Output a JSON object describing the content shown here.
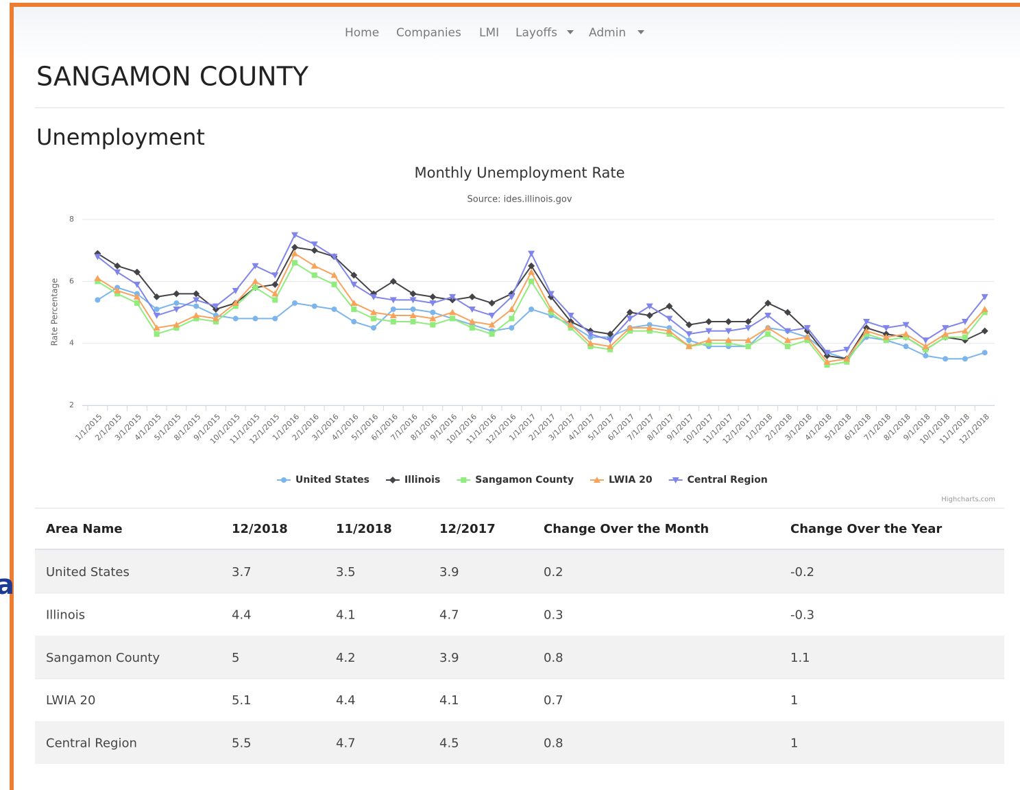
{
  "nav": [
    "Home",
    "Companies",
    "LMI",
    "Layoffs",
    "Admin"
  ],
  "side_text": "a",
  "page_title": "SANGAMON COUNTY",
  "section_title": "Unemployment",
  "chart_data": {
    "type": "line",
    "title": "Monthly Unemployment Rate",
    "subtitle": "Source: ides.illinois.gov",
    "y_label": "Rate Percentage",
    "credits": "Highcharts.com",
    "categories": [
      "1/1/2015",
      "2/1/2015",
      "3/1/2015",
      "4/1/2015",
      "5/1/2015",
      "8/1/2015",
      "9/1/2015",
      "10/1/2015",
      "11/1/2015",
      "12/1/2015",
      "1/1/2016",
      "2/1/2016",
      "3/1/2016",
      "4/1/2016",
      "5/1/2016",
      "6/1/2016",
      "7/1/2016",
      "8/1/2016",
      "9/1/2016",
      "10/1/2016",
      "11/1/2016",
      "12/1/2016",
      "1/1/2017",
      "2/1/2017",
      "3/1/2017",
      "4/1/2017",
      "5/1/2017",
      "6/1/2017",
      "7/1/2017",
      "8/1/2017",
      "9/1/2017",
      "10/1/2017",
      "11/1/2017",
      "12/1/2017",
      "1/1/2018",
      "2/1/2018",
      "3/1/2018",
      "4/1/2018",
      "5/1/2018",
      "6/1/2018",
      "7/1/2018",
      "8/1/2018",
      "9/1/2018",
      "10/1/2018",
      "11/1/2018",
      "12/1/2018"
    ],
    "series": [
      {
        "name": "United States",
        "color": "#7cb5ec",
        "marker": "circle",
        "values": [
          5.4,
          5.8,
          5.6,
          5.1,
          5.3,
          5.2,
          4.9,
          4.8,
          4.8,
          4.8,
          5.3,
          5.2,
          5.1,
          4.7,
          4.5,
          5.1,
          5.1,
          5.0,
          4.8,
          4.6,
          4.4,
          4.5,
          5.1,
          4.9,
          4.6,
          4.2,
          4.2,
          4.5,
          4.6,
          4.5,
          4.1,
          3.9,
          3.9,
          3.9,
          4.5,
          4.4,
          4.2,
          3.7,
          3.5,
          4.2,
          4.1,
          3.9,
          3.6,
          3.5,
          3.5,
          3.7
        ]
      },
      {
        "name": "Illinois",
        "color": "#434348",
        "marker": "diamond",
        "values": [
          6.9,
          6.5,
          6.3,
          5.5,
          5.6,
          5.6,
          5.1,
          5.3,
          5.8,
          5.9,
          7.1,
          7.0,
          6.8,
          6.2,
          5.6,
          6.0,
          5.6,
          5.5,
          5.4,
          5.5,
          5.3,
          5.6,
          6.5,
          5.5,
          4.7,
          4.4,
          4.3,
          5.0,
          4.9,
          5.2,
          4.6,
          4.7,
          4.7,
          4.7,
          5.3,
          5.0,
          4.4,
          3.6,
          3.5,
          4.5,
          4.3,
          4.2,
          3.8,
          4.2,
          4.1,
          4.4
        ]
      },
      {
        "name": "Sangamon County",
        "color": "#90ed7d",
        "marker": "square",
        "values": [
          6.0,
          5.6,
          5.3,
          4.3,
          4.5,
          4.8,
          4.7,
          5.2,
          5.8,
          5.4,
          6.6,
          6.2,
          5.9,
          5.1,
          4.8,
          4.7,
          4.7,
          4.6,
          4.8,
          4.5,
          4.3,
          4.8,
          6.0,
          5.0,
          4.5,
          3.9,
          3.8,
          4.4,
          4.4,
          4.3,
          3.9,
          4.0,
          4.0,
          3.9,
          4.3,
          3.9,
          4.1,
          3.3,
          3.4,
          4.3,
          4.1,
          4.2,
          3.8,
          4.2,
          4.2,
          5.0
        ]
      },
      {
        "name": "LWIA 20",
        "color": "#f7a35c",
        "marker": "triangle",
        "values": [
          6.1,
          5.7,
          5.5,
          4.5,
          4.6,
          4.9,
          4.8,
          5.3,
          6.0,
          5.6,
          6.9,
          6.5,
          6.2,
          5.3,
          5.0,
          4.9,
          4.9,
          4.8,
          5.0,
          4.7,
          4.6,
          5.1,
          6.3,
          5.1,
          4.6,
          4.0,
          3.9,
          4.5,
          4.5,
          4.4,
          3.9,
          4.1,
          4.1,
          4.1,
          4.5,
          4.1,
          4.2,
          3.4,
          3.5,
          4.4,
          4.2,
          4.3,
          3.9,
          4.3,
          4.4,
          5.1
        ]
      },
      {
        "name": "Central Region",
        "color": "#8085e9",
        "marker": "triangle-down",
        "values": [
          6.8,
          6.3,
          5.9,
          4.9,
          5.1,
          5.4,
          5.2,
          5.7,
          6.5,
          6.2,
          7.5,
          7.2,
          6.8,
          5.9,
          5.5,
          5.4,
          5.4,
          5.3,
          5.5,
          5.1,
          4.9,
          5.5,
          6.9,
          5.6,
          4.9,
          4.3,
          4.1,
          4.8,
          5.2,
          4.8,
          4.3,
          4.4,
          4.4,
          4.5,
          4.9,
          4.4,
          4.5,
          3.7,
          3.8,
          4.7,
          4.5,
          4.6,
          4.1,
          4.5,
          4.7,
          5.5
        ]
      }
    ],
    "ylim": [
      2,
      8
    ],
    "yticks": [
      2,
      4,
      6,
      8
    ],
    "grid": true,
    "legend": "bottom"
  },
  "table": {
    "columns": [
      "Area Name",
      "12/2018",
      "11/2018",
      "12/2017",
      "Change Over the Month",
      "Change Over the Year"
    ],
    "rows": [
      [
        "United States",
        "3.7",
        "3.5",
        "3.9",
        "0.2",
        "-0.2"
      ],
      [
        "Illinois",
        "4.4",
        "4.1",
        "4.7",
        "0.3",
        "-0.3"
      ],
      [
        "Sangamon County",
        "5",
        "4.2",
        "3.9",
        "0.8",
        "1.1"
      ],
      [
        "LWIA 20",
        "5.1",
        "4.4",
        "4.1",
        "0.7",
        "1"
      ],
      [
        "Central Region",
        "5.5",
        "4.7",
        "4.5",
        "0.8",
        "1"
      ]
    ]
  }
}
